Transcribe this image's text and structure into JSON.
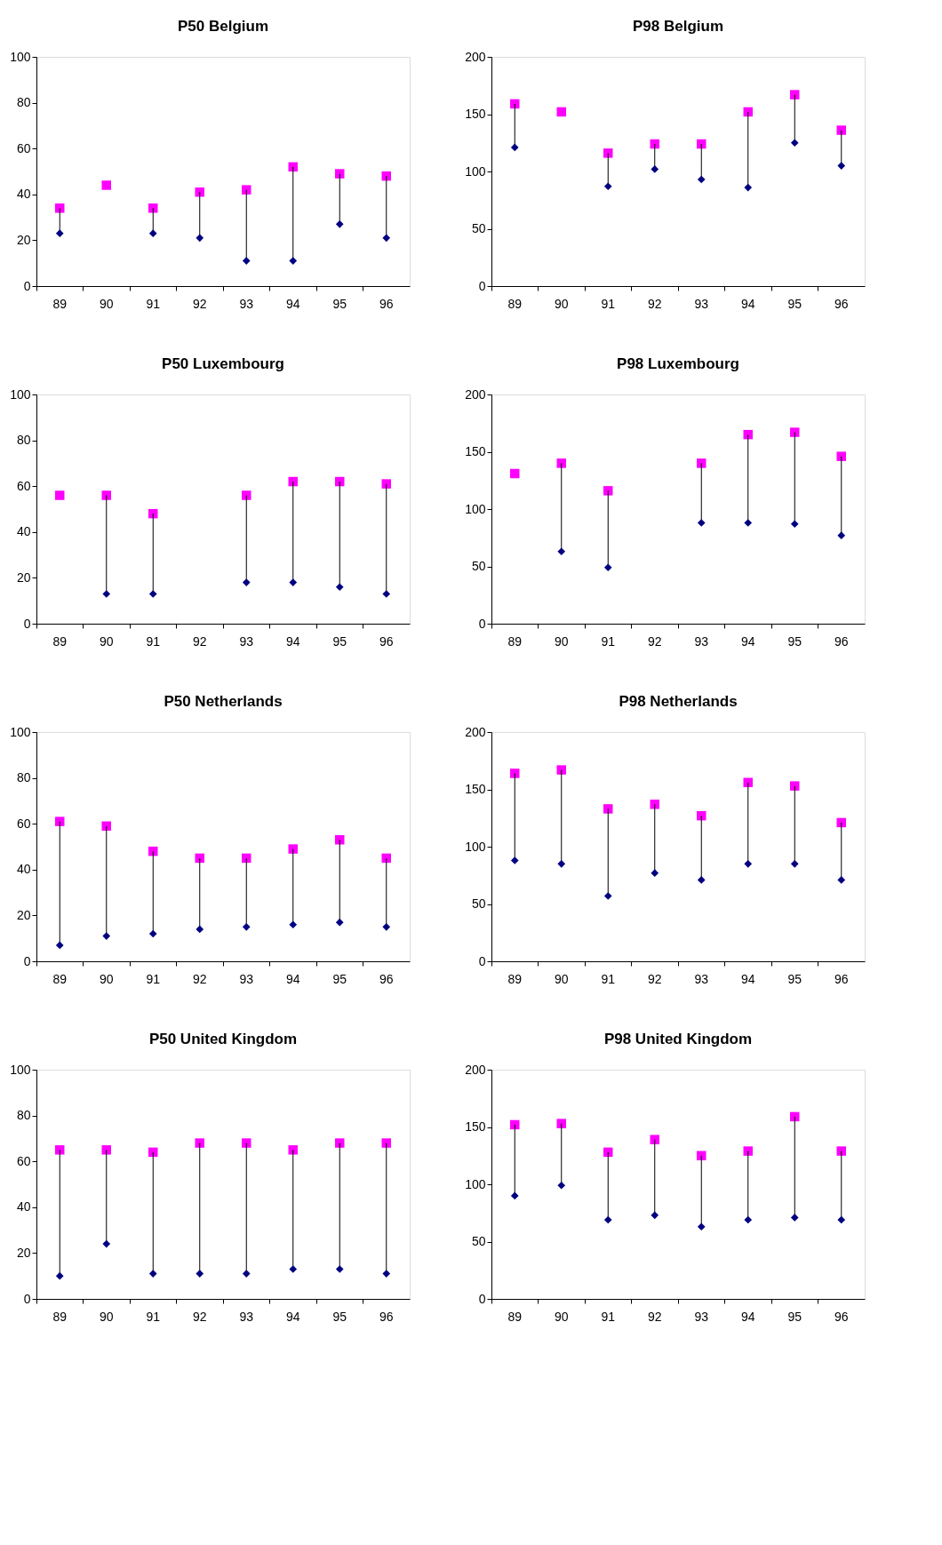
{
  "chart_data": [
    {
      "type": "scatter",
      "title": "P50 Belgium",
      "categories": [
        "89",
        "90",
        "91",
        "92",
        "93",
        "94",
        "95",
        "96"
      ],
      "ylim": [
        0,
        100
      ],
      "yticks": [
        0,
        20,
        40,
        60,
        80,
        100
      ],
      "grid": false,
      "series": [
        {
          "color": "#ff00ff",
          "marker": "square",
          "values": [
            34,
            44,
            34,
            41,
            42,
            52,
            49,
            48
          ]
        },
        {
          "color": "#000080",
          "marker": "diamond",
          "values": [
            23,
            null,
            23,
            21,
            11,
            11,
            27,
            21
          ]
        }
      ]
    },
    {
      "type": "scatter",
      "title": "P98 Belgium",
      "categories": [
        "89",
        "90",
        "91",
        "92",
        "93",
        "94",
        "95",
        "96"
      ],
      "ylim": [
        0,
        200
      ],
      "yticks": [
        0,
        50,
        100,
        150,
        200
      ],
      "grid": false,
      "series": [
        {
          "color": "#ff00ff",
          "marker": "square",
          "values": [
            159,
            152,
            116,
            124,
            124,
            152,
            167,
            136
          ]
        },
        {
          "color": "#000080",
          "marker": "diamond",
          "values": [
            121,
            null,
            87,
            102,
            93,
            86,
            125,
            105
          ]
        }
      ]
    },
    {
      "type": "scatter",
      "title": "P50 Luxembourg",
      "categories": [
        "89",
        "90",
        "91",
        "92",
        "93",
        "94",
        "95",
        "96"
      ],
      "ylim": [
        0,
        100
      ],
      "yticks": [
        0,
        20,
        40,
        60,
        80,
        100
      ],
      "grid": false,
      "series": [
        {
          "color": "#ff00ff",
          "marker": "square",
          "values": [
            56,
            56,
            48,
            null,
            56,
            62,
            62,
            61
          ]
        },
        {
          "color": "#000080",
          "marker": "diamond",
          "values": [
            null,
            13,
            13,
            null,
            18,
            18,
            16,
            13
          ]
        }
      ]
    },
    {
      "type": "scatter",
      "title": "P98 Luxembourg",
      "categories": [
        "89",
        "90",
        "91",
        "92",
        "93",
        "94",
        "95",
        "96"
      ],
      "ylim": [
        0,
        200
      ],
      "yticks": [
        0,
        50,
        100,
        150,
        200
      ],
      "grid": false,
      "series": [
        {
          "color": "#ff00ff",
          "marker": "square",
          "values": [
            131,
            140,
            116,
            null,
            140,
            165,
            167,
            146
          ]
        },
        {
          "color": "#000080",
          "marker": "diamond",
          "values": [
            null,
            63,
            49,
            null,
            88,
            88,
            87,
            77
          ]
        }
      ]
    },
    {
      "type": "scatter",
      "title": "P50 Netherlands",
      "categories": [
        "89",
        "90",
        "91",
        "92",
        "93",
        "94",
        "95",
        "96"
      ],
      "ylim": [
        0,
        100
      ],
      "yticks": [
        0,
        20,
        40,
        60,
        80,
        100
      ],
      "grid": false,
      "series": [
        {
          "color": "#ff00ff",
          "marker": "square",
          "values": [
            61,
            59,
            48,
            45,
            45,
            49,
            53,
            45
          ]
        },
        {
          "color": "#000080",
          "marker": "diamond",
          "values": [
            7,
            11,
            12,
            14,
            15,
            16,
            17,
            15
          ]
        }
      ]
    },
    {
      "type": "scatter",
      "title": "P98 Netherlands",
      "categories": [
        "89",
        "90",
        "91",
        "92",
        "93",
        "94",
        "95",
        "96"
      ],
      "ylim": [
        0,
        200
      ],
      "yticks": [
        0,
        50,
        100,
        150,
        200
      ],
      "grid": false,
      "series": [
        {
          "color": "#ff00ff",
          "marker": "square",
          "values": [
            164,
            167,
            133,
            137,
            127,
            156,
            153,
            121
          ]
        },
        {
          "color": "#000080",
          "marker": "diamond",
          "values": [
            88,
            85,
            57,
            77,
            71,
            85,
            85,
            71
          ]
        }
      ]
    },
    {
      "type": "scatter",
      "title": "P50 United Kingdom",
      "categories": [
        "89",
        "90",
        "91",
        "92",
        "93",
        "94",
        "95",
        "96"
      ],
      "ylim": [
        0,
        100
      ],
      "yticks": [
        0,
        20,
        40,
        60,
        80,
        100
      ],
      "grid": false,
      "series": [
        {
          "color": "#ff00ff",
          "marker": "square",
          "values": [
            65,
            65,
            64,
            68,
            68,
            65,
            68,
            68
          ]
        },
        {
          "color": "#000080",
          "marker": "diamond",
          "values": [
            10,
            24,
            11,
            11,
            11,
            13,
            13,
            11
          ]
        }
      ]
    },
    {
      "type": "scatter",
      "title": "P98 United Kingdom",
      "categories": [
        "89",
        "90",
        "91",
        "92",
        "93",
        "94",
        "95",
        "96"
      ],
      "ylim": [
        0,
        200
      ],
      "yticks": [
        0,
        50,
        100,
        150,
        200
      ],
      "grid": false,
      "series": [
        {
          "color": "#ff00ff",
          "marker": "square",
          "values": [
            152,
            153,
            128,
            139,
            125,
            129,
            159,
            129
          ]
        },
        {
          "color": "#000080",
          "marker": "diamond",
          "values": [
            90,
            99,
            69,
            73,
            63,
            69,
            71,
            69
          ]
        }
      ]
    }
  ]
}
